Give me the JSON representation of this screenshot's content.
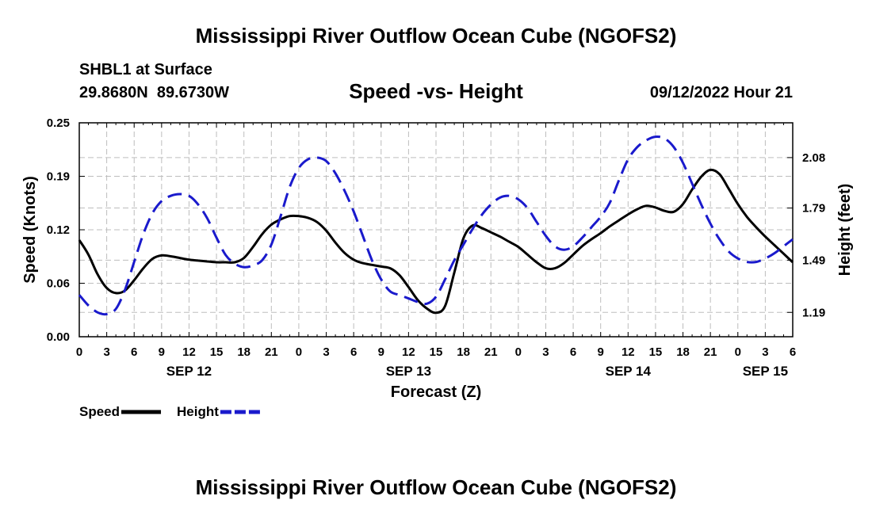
{
  "page": {
    "title": "Mississippi River Outflow Ocean Cube (NGOFS2)",
    "footer_title": "Mississippi River Outflow Ocean Cube (NGOFS2)",
    "station": "SHBL1 at Surface",
    "coords": "29.8680N  89.6730W",
    "datetime": "09/12/2022 Hour 21"
  },
  "chart_data": {
    "type": "line",
    "title": "Speed -vs- Height",
    "xlabel": "Forecast (Z)",
    "ylabel": "Speed (Knots)",
    "y2label": "Height (feet)",
    "x_unit": "hours from Sep 12 00Z",
    "xlim": [
      0,
      78
    ],
    "ylim": [
      0,
      0.25
    ],
    "y2lim": [
      1.05,
      2.28
    ],
    "y_ticks": [
      {
        "v": 0,
        "label": "0.00"
      },
      {
        "v": 0.0625,
        "label": "0.06"
      },
      {
        "v": 0.125,
        "label": "0.12"
      },
      {
        "v": 0.1875,
        "label": "0.19"
      },
      {
        "v": 0.25,
        "label": "0.25"
      }
    ],
    "y2_ticks": [
      {
        "v": 1.19,
        "label": "1.19"
      },
      {
        "v": 1.49,
        "label": "1.49"
      },
      {
        "v": 1.79,
        "label": "1.79"
      },
      {
        "v": 2.08,
        "label": "2.08"
      }
    ],
    "x_ticks": [
      {
        "h": 0,
        "label": "0"
      },
      {
        "h": 3,
        "label": "3"
      },
      {
        "h": 6,
        "label": "6"
      },
      {
        "h": 9,
        "label": "9"
      },
      {
        "h": 12,
        "label": "12"
      },
      {
        "h": 15,
        "label": "15"
      },
      {
        "h": 18,
        "label": "18"
      },
      {
        "h": 21,
        "label": "21"
      },
      {
        "h": 24,
        "label": "0"
      },
      {
        "h": 27,
        "label": "3"
      },
      {
        "h": 30,
        "label": "6"
      },
      {
        "h": 33,
        "label": "9"
      },
      {
        "h": 36,
        "label": "12"
      },
      {
        "h": 39,
        "label": "15"
      },
      {
        "h": 42,
        "label": "18"
      },
      {
        "h": 45,
        "label": "21"
      },
      {
        "h": 48,
        "label": "0"
      },
      {
        "h": 51,
        "label": "3"
      },
      {
        "h": 54,
        "label": "6"
      },
      {
        "h": 57,
        "label": "9"
      },
      {
        "h": 60,
        "label": "12"
      },
      {
        "h": 63,
        "label": "15"
      },
      {
        "h": 66,
        "label": "18"
      },
      {
        "h": 69,
        "label": "21"
      },
      {
        "h": 72,
        "label": "0"
      },
      {
        "h": 75,
        "label": "3"
      },
      {
        "h": 78,
        "label": "6"
      }
    ],
    "date_labels": [
      {
        "h": 12,
        "label": "SEP 12"
      },
      {
        "h": 36,
        "label": "SEP 13"
      },
      {
        "h": 60,
        "label": "SEP 14"
      },
      {
        "h": 75,
        "label": "SEP 15"
      }
    ],
    "grid": true,
    "legend_position": "bottom-left",
    "series": [
      {
        "name": "Speed",
        "axis": "left",
        "color": "#000000",
        "dash": "solid",
        "points": [
          [
            0,
            0.113
          ],
          [
            1,
            0.096
          ],
          [
            2,
            0.073
          ],
          [
            3,
            0.057
          ],
          [
            4,
            0.051
          ],
          [
            5,
            0.054
          ],
          [
            6,
            0.066
          ],
          [
            7,
            0.08
          ],
          [
            8,
            0.091
          ],
          [
            9,
            0.095
          ],
          [
            10,
            0.094
          ],
          [
            11,
            0.092
          ],
          [
            12,
            0.09
          ],
          [
            13,
            0.089
          ],
          [
            14,
            0.088
          ],
          [
            15,
            0.087
          ],
          [
            16,
            0.087
          ],
          [
            17,
            0.087
          ],
          [
            18,
            0.092
          ],
          [
            19,
            0.105
          ],
          [
            20,
            0.12
          ],
          [
            21,
            0.131
          ],
          [
            22,
            0.137
          ],
          [
            23,
            0.141
          ],
          [
            24,
            0.141
          ],
          [
            25,
            0.139
          ],
          [
            26,
            0.134
          ],
          [
            27,
            0.124
          ],
          [
            28,
            0.11
          ],
          [
            29,
            0.098
          ],
          [
            30,
            0.09
          ],
          [
            31,
            0.086
          ],
          [
            32,
            0.084
          ],
          [
            33,
            0.082
          ],
          [
            34,
            0.08
          ],
          [
            35,
            0.072
          ],
          [
            36,
            0.058
          ],
          [
            37,
            0.043
          ],
          [
            38,
            0.033
          ],
          [
            39,
            0.028
          ],
          [
            40,
            0.036
          ],
          [
            41,
            0.075
          ],
          [
            42,
            0.115
          ],
          [
            43,
            0.13
          ],
          [
            44,
            0.127
          ],
          [
            45,
            0.122
          ],
          [
            46,
            0.117
          ],
          [
            47,
            0.111
          ],
          [
            48,
            0.105
          ],
          [
            49,
            0.096
          ],
          [
            50,
            0.087
          ],
          [
            51,
            0.08
          ],
          [
            52,
            0.08
          ],
          [
            53,
            0.086
          ],
          [
            54,
            0.096
          ],
          [
            55,
            0.106
          ],
          [
            56,
            0.114
          ],
          [
            57,
            0.121
          ],
          [
            58,
            0.129
          ],
          [
            59,
            0.136
          ],
          [
            60,
            0.143
          ],
          [
            61,
            0.149
          ],
          [
            62,
            0.153
          ],
          [
            63,
            0.151
          ],
          [
            64,
            0.147
          ],
          [
            65,
            0.146
          ],
          [
            66,
            0.155
          ],
          [
            67,
            0.172
          ],
          [
            68,
            0.187
          ],
          [
            69,
            0.195
          ],
          [
            70,
            0.19
          ],
          [
            71,
            0.173
          ],
          [
            72,
            0.155
          ],
          [
            73,
            0.14
          ],
          [
            74,
            0.128
          ],
          [
            75,
            0.117
          ],
          [
            76,
            0.107
          ],
          [
            77,
            0.097
          ],
          [
            78,
            0.087
          ]
        ]
      },
      {
        "name": "Height",
        "axis": "right",
        "color": "#1a1acc",
        "dash": "dashed",
        "points": [
          [
            0,
            1.29
          ],
          [
            1,
            1.23
          ],
          [
            2,
            1.19
          ],
          [
            3,
            1.18
          ],
          [
            4,
            1.21
          ],
          [
            5,
            1.32
          ],
          [
            6,
            1.48
          ],
          [
            7,
            1.64
          ],
          [
            8,
            1.76
          ],
          [
            9,
            1.83
          ],
          [
            10,
            1.86
          ],
          [
            11,
            1.87
          ],
          [
            12,
            1.86
          ],
          [
            13,
            1.81
          ],
          [
            14,
            1.73
          ],
          [
            15,
            1.62
          ],
          [
            16,
            1.52
          ],
          [
            17,
            1.47
          ],
          [
            18,
            1.45
          ],
          [
            19,
            1.46
          ],
          [
            20,
            1.49
          ],
          [
            21,
            1.58
          ],
          [
            22,
            1.74
          ],
          [
            23,
            1.91
          ],
          [
            24,
            2.02
          ],
          [
            25,
            2.07
          ],
          [
            26,
            2.08
          ],
          [
            27,
            2.06
          ],
          [
            28,
            1.99
          ],
          [
            29,
            1.89
          ],
          [
            30,
            1.77
          ],
          [
            31,
            1.63
          ],
          [
            32,
            1.49
          ],
          [
            33,
            1.38
          ],
          [
            34,
            1.31
          ],
          [
            35,
            1.29
          ],
          [
            36,
            1.27
          ],
          [
            37,
            1.25
          ],
          [
            38,
            1.24
          ],
          [
            39,
            1.28
          ],
          [
            40,
            1.38
          ],
          [
            41,
            1.49
          ],
          [
            42,
            1.58
          ],
          [
            43,
            1.67
          ],
          [
            44,
            1.75
          ],
          [
            45,
            1.81
          ],
          [
            46,
            1.85
          ],
          [
            47,
            1.86
          ],
          [
            48,
            1.84
          ],
          [
            49,
            1.79
          ],
          [
            50,
            1.71
          ],
          [
            51,
            1.63
          ],
          [
            52,
            1.57
          ],
          [
            53,
            1.55
          ],
          [
            54,
            1.57
          ],
          [
            55,
            1.62
          ],
          [
            56,
            1.68
          ],
          [
            57,
            1.74
          ],
          [
            58,
            1.82
          ],
          [
            59,
            1.95
          ],
          [
            60,
            2.07
          ],
          [
            61,
            2.14
          ],
          [
            62,
            2.18
          ],
          [
            63,
            2.2
          ],
          [
            64,
            2.19
          ],
          [
            65,
            2.14
          ],
          [
            66,
            2.05
          ],
          [
            67,
            1.93
          ],
          [
            68,
            1.81
          ],
          [
            69,
            1.7
          ],
          [
            70,
            1.61
          ],
          [
            71,
            1.54
          ],
          [
            72,
            1.5
          ],
          [
            73,
            1.48
          ],
          [
            74,
            1.48
          ],
          [
            75,
            1.5
          ],
          [
            76,
            1.53
          ],
          [
            77,
            1.57
          ],
          [
            78,
            1.61
          ]
        ]
      }
    ]
  }
}
